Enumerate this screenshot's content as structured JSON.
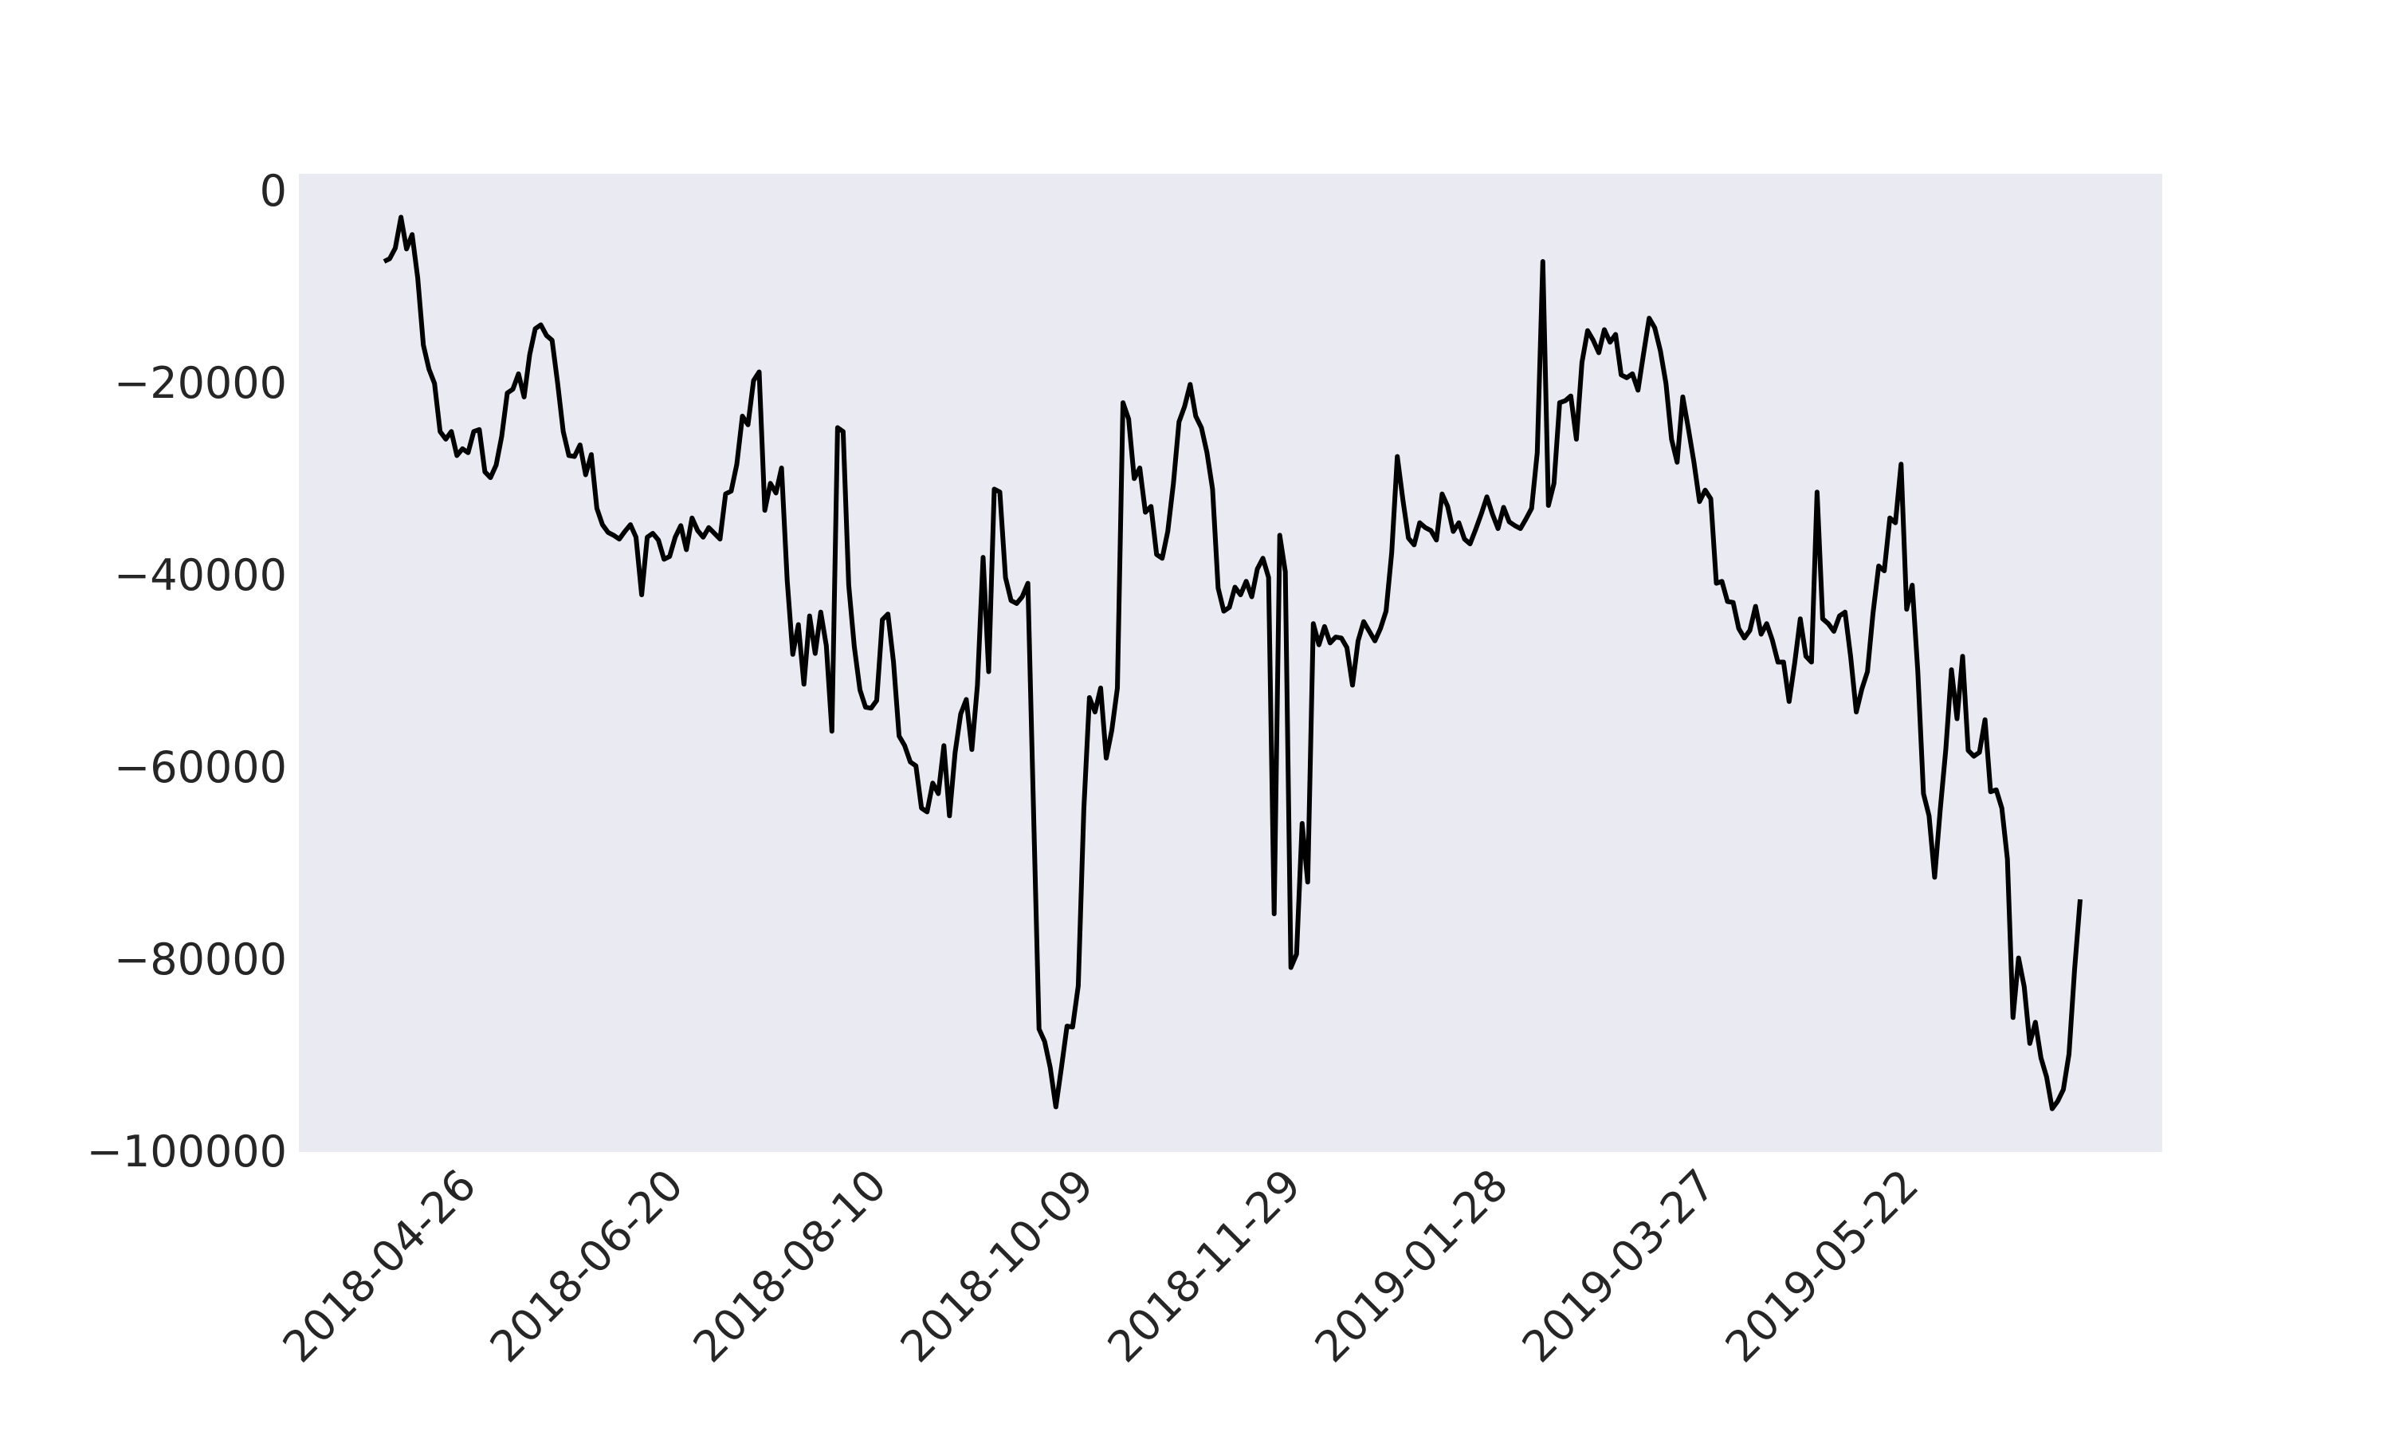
{
  "chart_data": {
    "type": "line",
    "title": "",
    "xlabel": "",
    "ylabel": "",
    "ylim": [
      -100000,
      2000
    ],
    "y_ticks": [
      0,
      -20000,
      -40000,
      -60000,
      -80000,
      -100000
    ],
    "y_tick_labels": [
      "0",
      "−20000",
      "−40000",
      "−60000",
      "−80000",
      "−100000"
    ],
    "x_tick_labels": [
      "2018-04-26",
      "2018-06-20",
      "2018-08-10",
      "2018-10-09",
      "2018-11-29",
      "2019-01-28",
      "2019-03-27",
      "2019-05-22"
    ],
    "grid": false,
    "series": [
      {
        "color": "#000000",
        "y": [
          -7300,
          -7000,
          -5900,
          -2700,
          -6000,
          -4500,
          -9000,
          -16000,
          -18500,
          -20000,
          -25000,
          -25800,
          -25000,
          -27500,
          -26800,
          -27200,
          -25000,
          -24800,
          -29200,
          -29800,
          -28500,
          -25500,
          -21000,
          -20600,
          -19000,
          -21400,
          -17000,
          -14300,
          -13900,
          -15000,
          -15500,
          -20000,
          -25000,
          -27500,
          -27600,
          -26400,
          -29500,
          -27400,
          -33000,
          -34700,
          -35500,
          -35800,
          -36200,
          -35400,
          -34700,
          -36000,
          -42000,
          -36000,
          -35600,
          -36300,
          -38300,
          -38000,
          -36000,
          -34800,
          -37300,
          -34000,
          -35300,
          -36000,
          -35000,
          -35600,
          -36200,
          -31500,
          -31200,
          -28400,
          -23400,
          -24300,
          -19700,
          -18800,
          -33200,
          -30400,
          -31400,
          -28800,
          -40500,
          -48200,
          -45100,
          -51300,
          -44200,
          -48100,
          -43800,
          -47300,
          -56200,
          -24600,
          -25000,
          -41000,
          -47400,
          -51900,
          -53700,
          -53800,
          -53000,
          -44600,
          -44000,
          -49000,
          -56700,
          -57700,
          -59400,
          -59800,
          -64200,
          -64600,
          -61600,
          -62700,
          -57700,
          -65000,
          -58400,
          -54400,
          -52900,
          -58100,
          -51400,
          -38100,
          -50000,
          -31000,
          -31300,
          -40200,
          -42600,
          -42900,
          -42200,
          -40800,
          -64200,
          -87200,
          -88500,
          -91200,
          -95300,
          -91200,
          -86900,
          -87000,
          -82700,
          -64300,
          -52700,
          -54200,
          -51700,
          -59000,
          -56100,
          -51700,
          -22000,
          -23700,
          -29900,
          -28800,
          -33400,
          -32800,
          -37800,
          -38200,
          -35400,
          -30400,
          -24000,
          -22400,
          -20100,
          -23400,
          -24600,
          -27200,
          -31000,
          -41300,
          -43700,
          -43300,
          -41200,
          -42000,
          -40600,
          -42200,
          -39300,
          -38200,
          -40200,
          -75200,
          -35800,
          -39600,
          -80800,
          -79400,
          -65800,
          -71900,
          -45000,
          -47200,
          -45300,
          -47000,
          -46400,
          -46500,
          -47500,
          -51400,
          -46800,
          -44800,
          -45800,
          -46800,
          -45500,
          -43700,
          -37600,
          -27600,
          -32100,
          -36100,
          -36800,
          -34500,
          -35000,
          -35300,
          -36300,
          -31500,
          -32800,
          -35400,
          -34500,
          -36200,
          -36700,
          -35200,
          -33600,
          -31800,
          -33600,
          -35100,
          -32900,
          -34400,
          -34800,
          -35100,
          -34100,
          -33000,
          -27200,
          -7300,
          -32700,
          -30400,
          -22000,
          -21800,
          -21300,
          -25800,
          -17800,
          -14500,
          -15500,
          -16800,
          -14400,
          -15700,
          -14900,
          -19100,
          -19400,
          -19000,
          -20700,
          -16900,
          -13200,
          -14200,
          -16600,
          -20000,
          -25800,
          -28200,
          -21400,
          -24700,
          -28200,
          -32300,
          -31100,
          -32000,
          -40800,
          -40600,
          -42700,
          -42800,
          -45500,
          -46500,
          -45700,
          -43200,
          -46100,
          -45000,
          -46700,
          -49000,
          -49000,
          -53100,
          -49100,
          -44500,
          -48400,
          -49000,
          -31300,
          -44500,
          -45000,
          -45800,
          -44200,
          -43800,
          -48500,
          -54200,
          -51800,
          -50000,
          -43900,
          -39000,
          -39500,
          -34000,
          -34500,
          -28400,
          -43500,
          -41000,
          -50000,
          -62700,
          -65000,
          -71400,
          -64400,
          -58100,
          -49800,
          -54900,
          -48400,
          -58200,
          -58800,
          -58400,
          -55000,
          -62500,
          -62300,
          -64200,
          -69500,
          -86000,
          -79800,
          -82800,
          -88700,
          -86500,
          -90200,
          -92200,
          -95500,
          -94700,
          -93500,
          -89800,
          -81000,
          -73700
        ]
      }
    ]
  }
}
